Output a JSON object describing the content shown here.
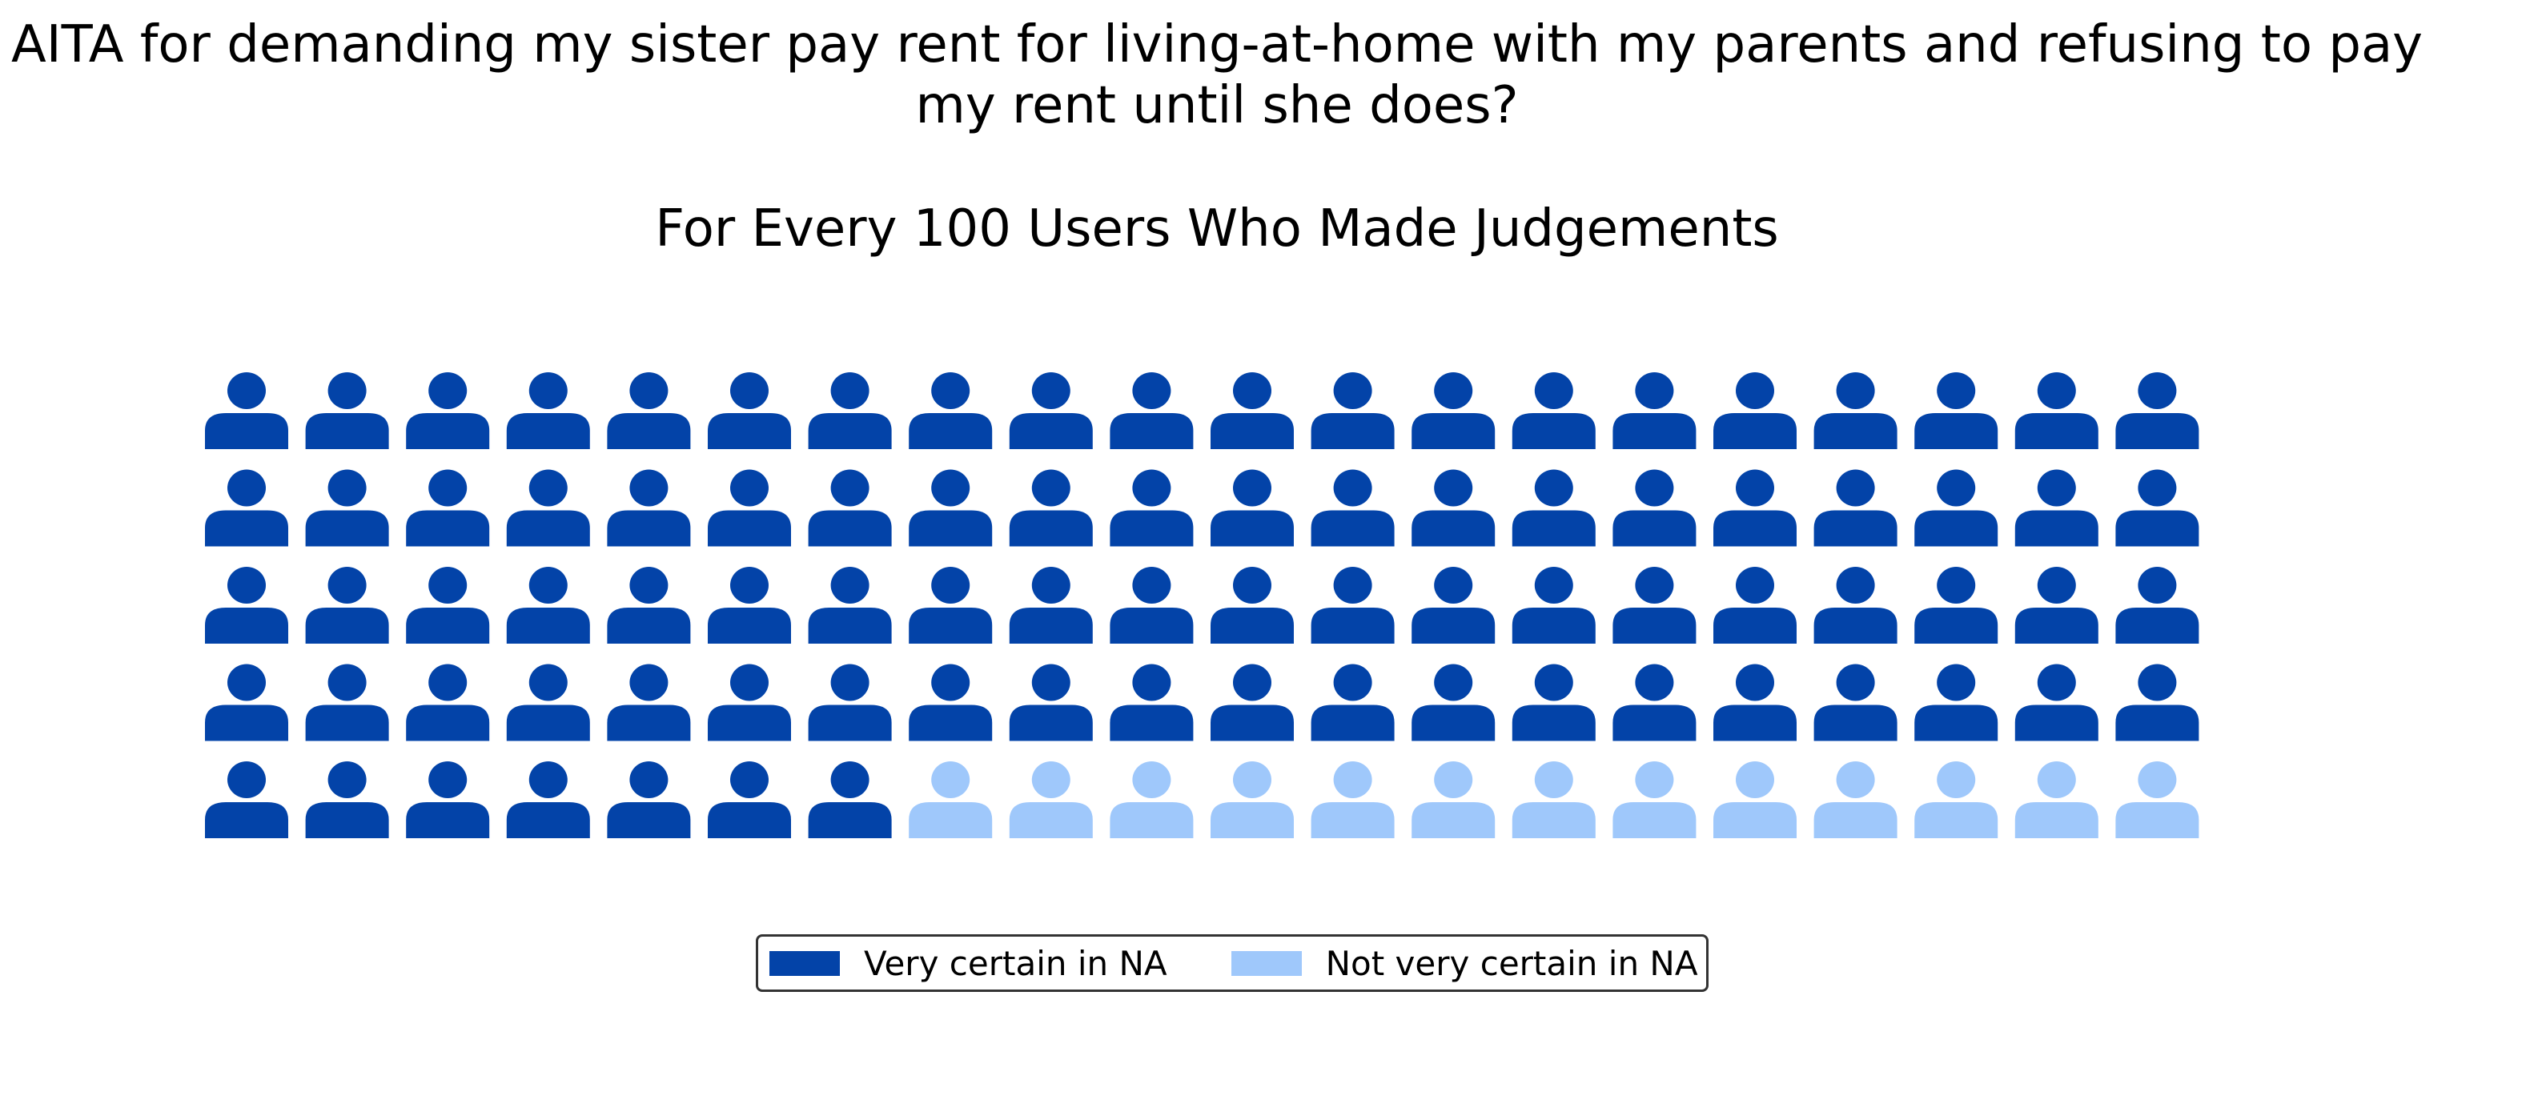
{
  "chart_data": {
    "type": "waffle",
    "title": "AITA for demanding my sister pay rent for living-at-home with my parents and refusing to pay my rent until she does?",
    "subtitle": "For Every 100 Users Who Made Judgements",
    "rows": 5,
    "columns": 20,
    "total": 100,
    "icon": "person-icon",
    "series": [
      {
        "name": "Very certain in NA",
        "value": 87,
        "color": "#0343a8"
      },
      {
        "name": "Not very certain in NA",
        "value": 13,
        "color": "#9fc8fb"
      }
    ],
    "legend_position": "bottom-center"
  }
}
